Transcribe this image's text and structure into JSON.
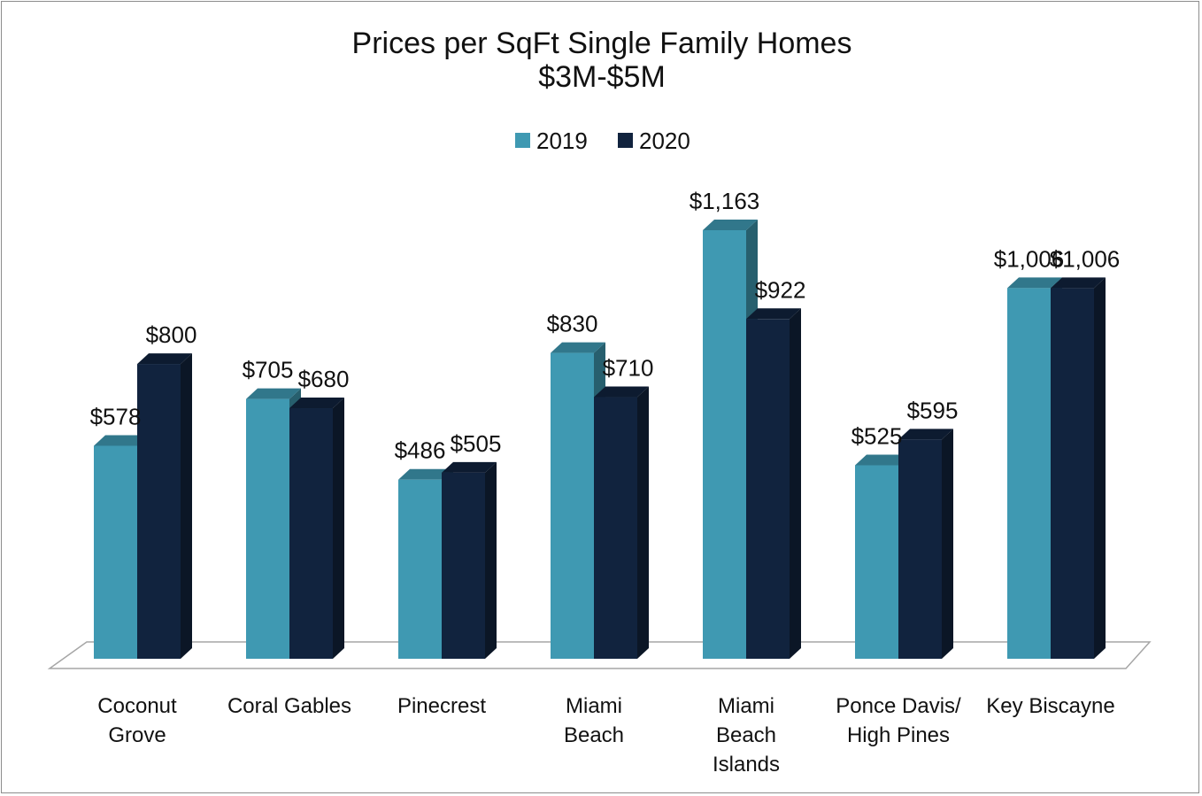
{
  "chart_data": {
    "type": "bar",
    "title": [
      "Prices per SqFt Single Family Homes",
      "$3M-$5M"
    ],
    "categories": [
      [
        "Coconut",
        "Grove"
      ],
      [
        "Coral Gables"
      ],
      [
        "Pinecrest"
      ],
      [
        "Miami",
        "Beach"
      ],
      [
        "Miami",
        "Beach",
        "Islands"
      ],
      [
        "Ponce Davis/",
        "High Pines"
      ],
      [
        "Key Biscayne"
      ]
    ],
    "series": [
      {
        "name": "2019",
        "color": "#3f99b2",
        "values": [
          578,
          705,
          486,
          830,
          1163,
          525,
          1006
        ],
        "labels": [
          "$578",
          "$705",
          "$486",
          "$830",
          "$1,163",
          "$525",
          "$1,006"
        ]
      },
      {
        "name": "2020",
        "color": "#11233e",
        "values": [
          800,
          680,
          505,
          710,
          922,
          595,
          1006
        ],
        "labels": [
          "$800",
          "$680",
          "$505",
          "$710",
          "$922",
          "$595",
          "$1,006"
        ]
      }
    ],
    "style": "3d-clustered-column",
    "legend_position": "top",
    "grid": false,
    "ylim": [
      0,
      1200
    ]
  }
}
